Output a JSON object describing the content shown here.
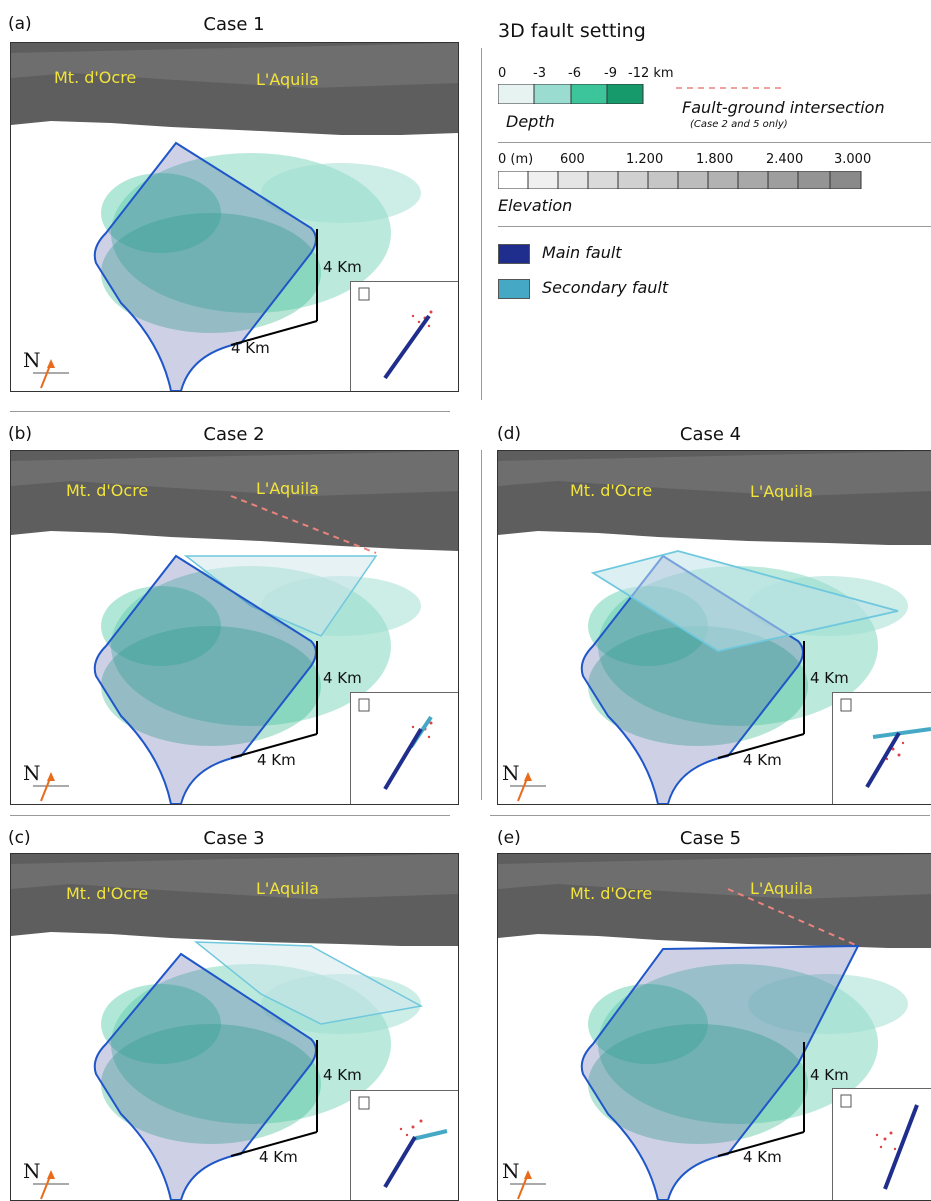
{
  "panels": [
    {
      "letter": "(a)",
      "title": "Case 1",
      "place1": "Mt. d'Ocre",
      "place2": "L'Aquila",
      "vlabel": "4 Km",
      "hlabel": "4 Km",
      "north": "N"
    },
    {
      "letter": "(b)",
      "title": "Case 2",
      "place1": "Mt. d'Ocre",
      "place2": "L'Aquila",
      "vlabel": "4 Km",
      "hlabel": "4 Km",
      "north": "N"
    },
    {
      "letter": "(c)",
      "title": "Case 3",
      "place1": "Mt. d'Ocre",
      "place2": "L'Aquila",
      "vlabel": "4 Km",
      "hlabel": "4 Km",
      "north": "N"
    },
    {
      "letter": "(d)",
      "title": "Case 4",
      "place1": "Mt. d'Ocre",
      "place2": "L'Aquila",
      "vlabel": "4 Km",
      "hlabel": "4 Km",
      "north": "N"
    },
    {
      "letter": "(e)",
      "title": "Case 5",
      "place1": "Mt. d'Ocre",
      "place2": "L'Aquila",
      "vlabel": "4 Km",
      "hlabel": "4 Km",
      "north": "N"
    }
  ],
  "legend": {
    "title": "3D fault setting",
    "depth_ticks": [
      "0",
      "-3",
      "-6",
      "-9",
      "-12 km"
    ],
    "depth_label": "Depth",
    "depth_colors": [
      "#e6f3f1",
      "#9bdcd0",
      "#3cc49a",
      "#169a6c"
    ],
    "intersection_label": "Fault-ground intersection",
    "intersection_note": "(Case 2 and 5 only)",
    "intersection_color": "#e8847c",
    "elev_ticks": [
      "0 (m)",
      "600",
      "1.200",
      "1.800",
      "2.400",
      "3.000"
    ],
    "elev_label": "Elevation",
    "main_fault_label": "Main fault",
    "main_fault_color": "#1f2e8c",
    "secondary_fault_label": "Secondary fault",
    "secondary_fault_color": "#45a9c6"
  }
}
